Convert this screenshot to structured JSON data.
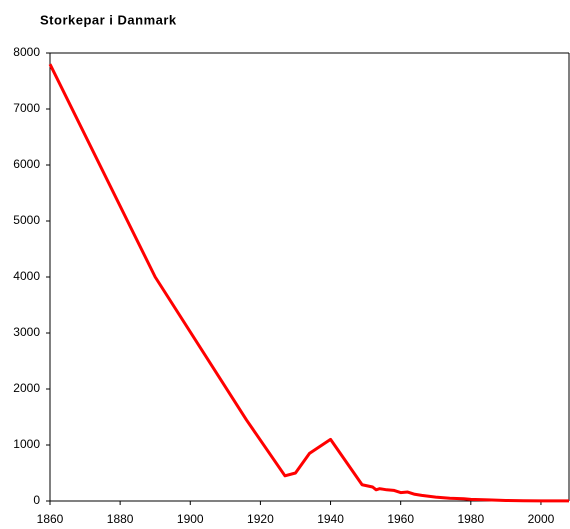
{
  "chart_data": {
    "type": "line",
    "title": "Storkepar i Danmark",
    "x": [
      1860,
      1890,
      1916,
      1927,
      1930,
      1934,
      1940,
      1949,
      1952,
      1953,
      1954,
      1956,
      1958,
      1960,
      1962,
      1964,
      1966,
      1970,
      1974,
      1978,
      1980,
      1985,
      1990,
      1995,
      2000,
      2008
    ],
    "series": [
      {
        "name": "Storkepar",
        "color": "#ff0000",
        "values": [
          7800,
          4000,
          1450,
          450,
          500,
          850,
          1100,
          290,
          250,
          200,
          220,
          200,
          190,
          150,
          160,
          120,
          100,
          70,
          50,
          40,
          30,
          20,
          10,
          5,
          3,
          2
        ]
      }
    ],
    "xlim": [
      1860,
      2008
    ],
    "xticks": [
      1860,
      1880,
      1900,
      1920,
      1940,
      1960,
      1980,
      2000
    ],
    "ylim": [
      0,
      8000
    ],
    "yticks": [
      0,
      1000,
      2000,
      3000,
      4000,
      5000,
      6000,
      7000,
      8000
    ],
    "grid": false
  }
}
